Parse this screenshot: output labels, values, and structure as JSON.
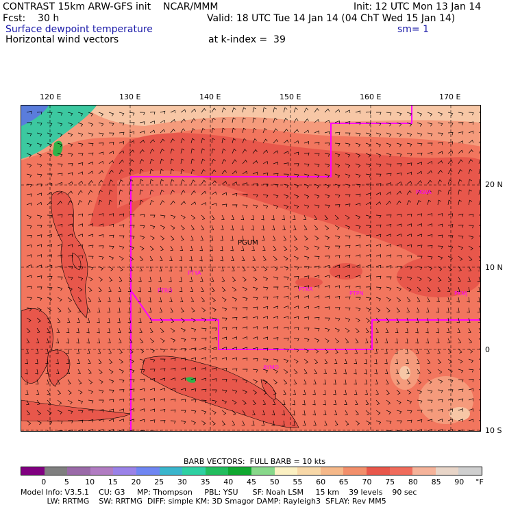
{
  "header": {
    "line1_left": "CONTRAST 15km ARW-GFS init    NCAR/MMM",
    "line1_right": "Init: 12 UTC Mon 13 Jan 14",
    "line2_left": "Fcst:    30 h",
    "line2_right": "Valid: 18 UTC Tue 14 Jan 14 (04 ChT Wed 15 Jan 14)",
    "line3_left": "Surface dewpoint temperature",
    "line3_right": "sm= 1",
    "line4_left": "Horizontal wind vectors",
    "line4_right": "at k-index =  39"
  },
  "axes": {
    "lon_labels": [
      "120 E",
      "130 E",
      "140 E",
      "150 E",
      "160 E",
      "170 E"
    ],
    "lat_labels": [
      "20 N",
      "10 N",
      "0",
      "10 S"
    ]
  },
  "map": {
    "station_labels": [
      "PTYA",
      "PTRO",
      "PTKR",
      "PTPN",
      "PKMJ",
      "PGUM",
      "AYMO",
      "PKWA"
    ],
    "colors": {
      "sea_deep": "#e8574b",
      "sea_mid": "#f2765e",
      "sea_light": "#f59b7c",
      "pale": "#f7c7a6",
      "land": "#e8574b",
      "green": "#2fb34a",
      "teal": "#3cc8a0",
      "blue": "#5a7ddc",
      "boundary": "#ff00ff"
    }
  },
  "legend": {
    "barb_note": "BARB VECTORS:  FULL BARB = 10 kts",
    "ticks": [
      "0",
      "5",
      "10",
      "15",
      "20",
      "25",
      "30",
      "35",
      "40",
      "45",
      "50",
      "55",
      "60",
      "65",
      "70",
      "75",
      "80",
      "85",
      "90"
    ],
    "unit": "°F",
    "colors": [
      "#800080",
      "#7f7f7f",
      "#9a6aa8",
      "#b17cc2",
      "#9a82e8",
      "#6f86f2",
      "#3ab5cc",
      "#2ed0a2",
      "#22bd5e",
      "#10a830",
      "#88d88a",
      "#fbf0c2",
      "#f8d8a8",
      "#f5b889",
      "#f28f6b",
      "#e8574b",
      "#f06c5c",
      "#f5b39a",
      "#e8d5c8",
      "#cfcfcf"
    ]
  },
  "footer": {
    "line1": "Model Info: V3.5.1    CU: G3     MP: Thompson     PBL: YSU      SF: Noah LSM     15 km    39 levels    90 sec",
    "line2": "           LW: RRTMG    SW: RRTMG  DIFF: simple KM: 3D Smagor DAMP: Rayleigh3  SFLAY: Rev MM5"
  }
}
